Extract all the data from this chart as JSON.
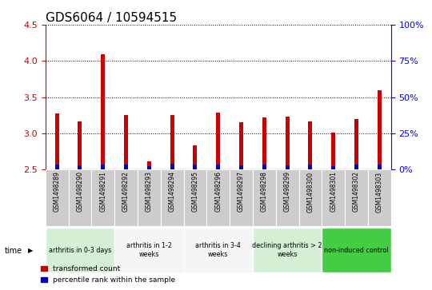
{
  "title": "GDS6064 / 10594515",
  "samples": [
    "GSM1498289",
    "GSM1498290",
    "GSM1498291",
    "GSM1498292",
    "GSM1498293",
    "GSM1498294",
    "GSM1498295",
    "GSM1498296",
    "GSM1498297",
    "GSM1498298",
    "GSM1498299",
    "GSM1498300",
    "GSM1498301",
    "GSM1498302",
    "GSM1498303"
  ],
  "red_values": [
    3.28,
    3.17,
    4.09,
    3.25,
    2.61,
    3.25,
    2.83,
    3.29,
    3.15,
    3.22,
    3.23,
    3.16,
    3.01,
    3.2,
    3.6
  ],
  "blue_values": [
    0.065,
    0.055,
    0.075,
    0.065,
    0.045,
    0.085,
    0.065,
    0.065,
    0.06,
    0.065,
    0.055,
    0.065,
    0.05,
    0.065,
    0.065
  ],
  "base": 2.5,
  "ylim_left": [
    2.5,
    4.5
  ],
  "ylim_right": [
    0,
    100
  ],
  "yticks_left": [
    2.5,
    3.0,
    3.5,
    4.0,
    4.5
  ],
  "yticks_right": [
    0,
    25,
    50,
    75,
    100
  ],
  "groups": [
    {
      "label": "arthritis in 0-3 days",
      "start": 0,
      "end": 3,
      "color": "#d4efd4"
    },
    {
      "label": "arthritis in 1-2\nweeks",
      "start": 3,
      "end": 6,
      "color": "#f5f5f5"
    },
    {
      "label": "arthritis in 3-4\nweeks",
      "start": 6,
      "end": 9,
      "color": "#f5f5f5"
    },
    {
      "label": "declining arthritis > 2\nweeks",
      "start": 9,
      "end": 12,
      "color": "#d4efd4"
    },
    {
      "label": "non-induced control",
      "start": 12,
      "end": 15,
      "color": "#44cc44"
    }
  ],
  "bar_width": 0.18,
  "red_color": "#cc0000",
  "blue_color": "#0000cc",
  "sample_box_color": "#cccccc",
  "grid_color": "#000000",
  "title_fontsize": 11,
  "tick_fontsize": 7,
  "label_fontsize": 7
}
